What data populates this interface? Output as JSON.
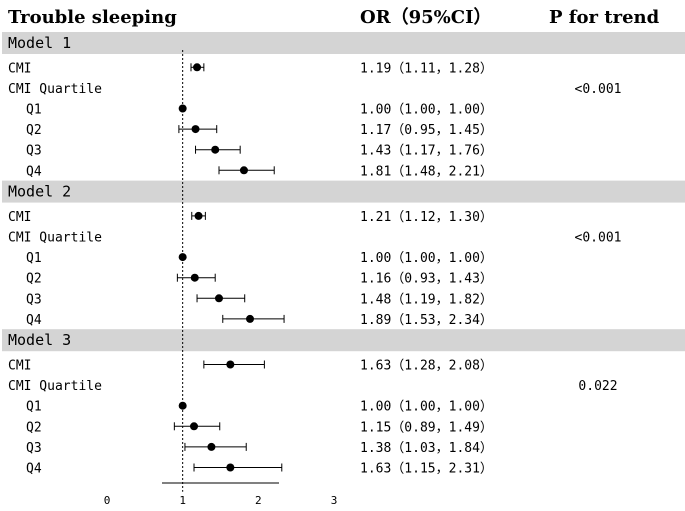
{
  "header": {
    "title": "Trouble sleeping",
    "or_header": "OR（95%CI）",
    "p_header": "P for trend"
  },
  "chart_data": {
    "type": "forest",
    "reference_line": 1,
    "x_axis": {
      "min": 0,
      "max": 3,
      "ticks": [
        "0",
        "1",
        "2",
        "3"
      ]
    },
    "groups": [
      {
        "name": "Model 1",
        "rows": [
          {
            "label": "CMI",
            "indent": false,
            "or": 1.19,
            "lo": 1.11,
            "hi": 1.28,
            "text": "1.19（1.11，1.28）",
            "p": ""
          },
          {
            "label": "CMI Quartile",
            "indent": false,
            "or": null,
            "lo": null,
            "hi": null,
            "text": "",
            "p": "<0.001"
          },
          {
            "label": "Q1",
            "indent": true,
            "or": 1.0,
            "lo": 1.0,
            "hi": 1.0,
            "text": "1.00（1.00，1.00）",
            "p": ""
          },
          {
            "label": "Q2",
            "indent": true,
            "or": 1.17,
            "lo": 0.95,
            "hi": 1.45,
            "text": "1.17（0.95，1.45）",
            "p": ""
          },
          {
            "label": "Q3",
            "indent": true,
            "or": 1.43,
            "lo": 1.17,
            "hi": 1.76,
            "text": "1.43（1.17，1.76）",
            "p": ""
          },
          {
            "label": "Q4",
            "indent": true,
            "or": 1.81,
            "lo": 1.48,
            "hi": 2.21,
            "text": "1.81（1.48，2.21）",
            "p": ""
          }
        ]
      },
      {
        "name": "Model 2",
        "rows": [
          {
            "label": "CMI",
            "indent": false,
            "or": 1.21,
            "lo": 1.12,
            "hi": 1.3,
            "text": "1.21（1.12，1.30）",
            "p": ""
          },
          {
            "label": "CMI Quartile",
            "indent": false,
            "or": null,
            "lo": null,
            "hi": null,
            "text": "",
            "p": "<0.001"
          },
          {
            "label": "Q1",
            "indent": true,
            "or": 1.0,
            "lo": 1.0,
            "hi": 1.0,
            "text": "1.00（1.00，1.00）",
            "p": ""
          },
          {
            "label": "Q2",
            "indent": true,
            "or": 1.16,
            "lo": 0.93,
            "hi": 1.43,
            "text": "1.16（0.93，1.43）",
            "p": ""
          },
          {
            "label": "Q3",
            "indent": true,
            "or": 1.48,
            "lo": 1.19,
            "hi": 1.82,
            "text": "1.48（1.19，1.82）",
            "p": ""
          },
          {
            "label": "Q4",
            "indent": true,
            "or": 1.89,
            "lo": 1.53,
            "hi": 2.34,
            "text": "1.89（1.53，2.34）",
            "p": ""
          }
        ]
      },
      {
        "name": "Model 3",
        "rows": [
          {
            "label": "CMI",
            "indent": false,
            "or": 1.63,
            "lo": 1.28,
            "hi": 2.08,
            "text": "1.63（1.28，2.08）",
            "p": ""
          },
          {
            "label": "CMI Quartile",
            "indent": false,
            "or": null,
            "lo": null,
            "hi": null,
            "text": "",
            "p": "0.022"
          },
          {
            "label": "Q1",
            "indent": true,
            "or": 1.0,
            "lo": 1.0,
            "hi": 1.0,
            "text": "1.00（1.00，1.00）",
            "p": ""
          },
          {
            "label": "Q2",
            "indent": true,
            "or": 1.15,
            "lo": 0.89,
            "hi": 1.49,
            "text": "1.15（0.89，1.49）",
            "p": ""
          },
          {
            "label": "Q3",
            "indent": true,
            "or": 1.38,
            "lo": 1.03,
            "hi": 1.84,
            "text": "1.38（1.03，1.84）",
            "p": ""
          },
          {
            "label": "Q4",
            "indent": true,
            "or": 1.63,
            "lo": 1.15,
            "hi": 2.31,
            "text": "1.63（1.15，2.31）",
            "p": ""
          }
        ]
      }
    ],
    "colors": {
      "band": "#d4d4d4",
      "marker": "#000000",
      "ci": "#000000"
    }
  }
}
